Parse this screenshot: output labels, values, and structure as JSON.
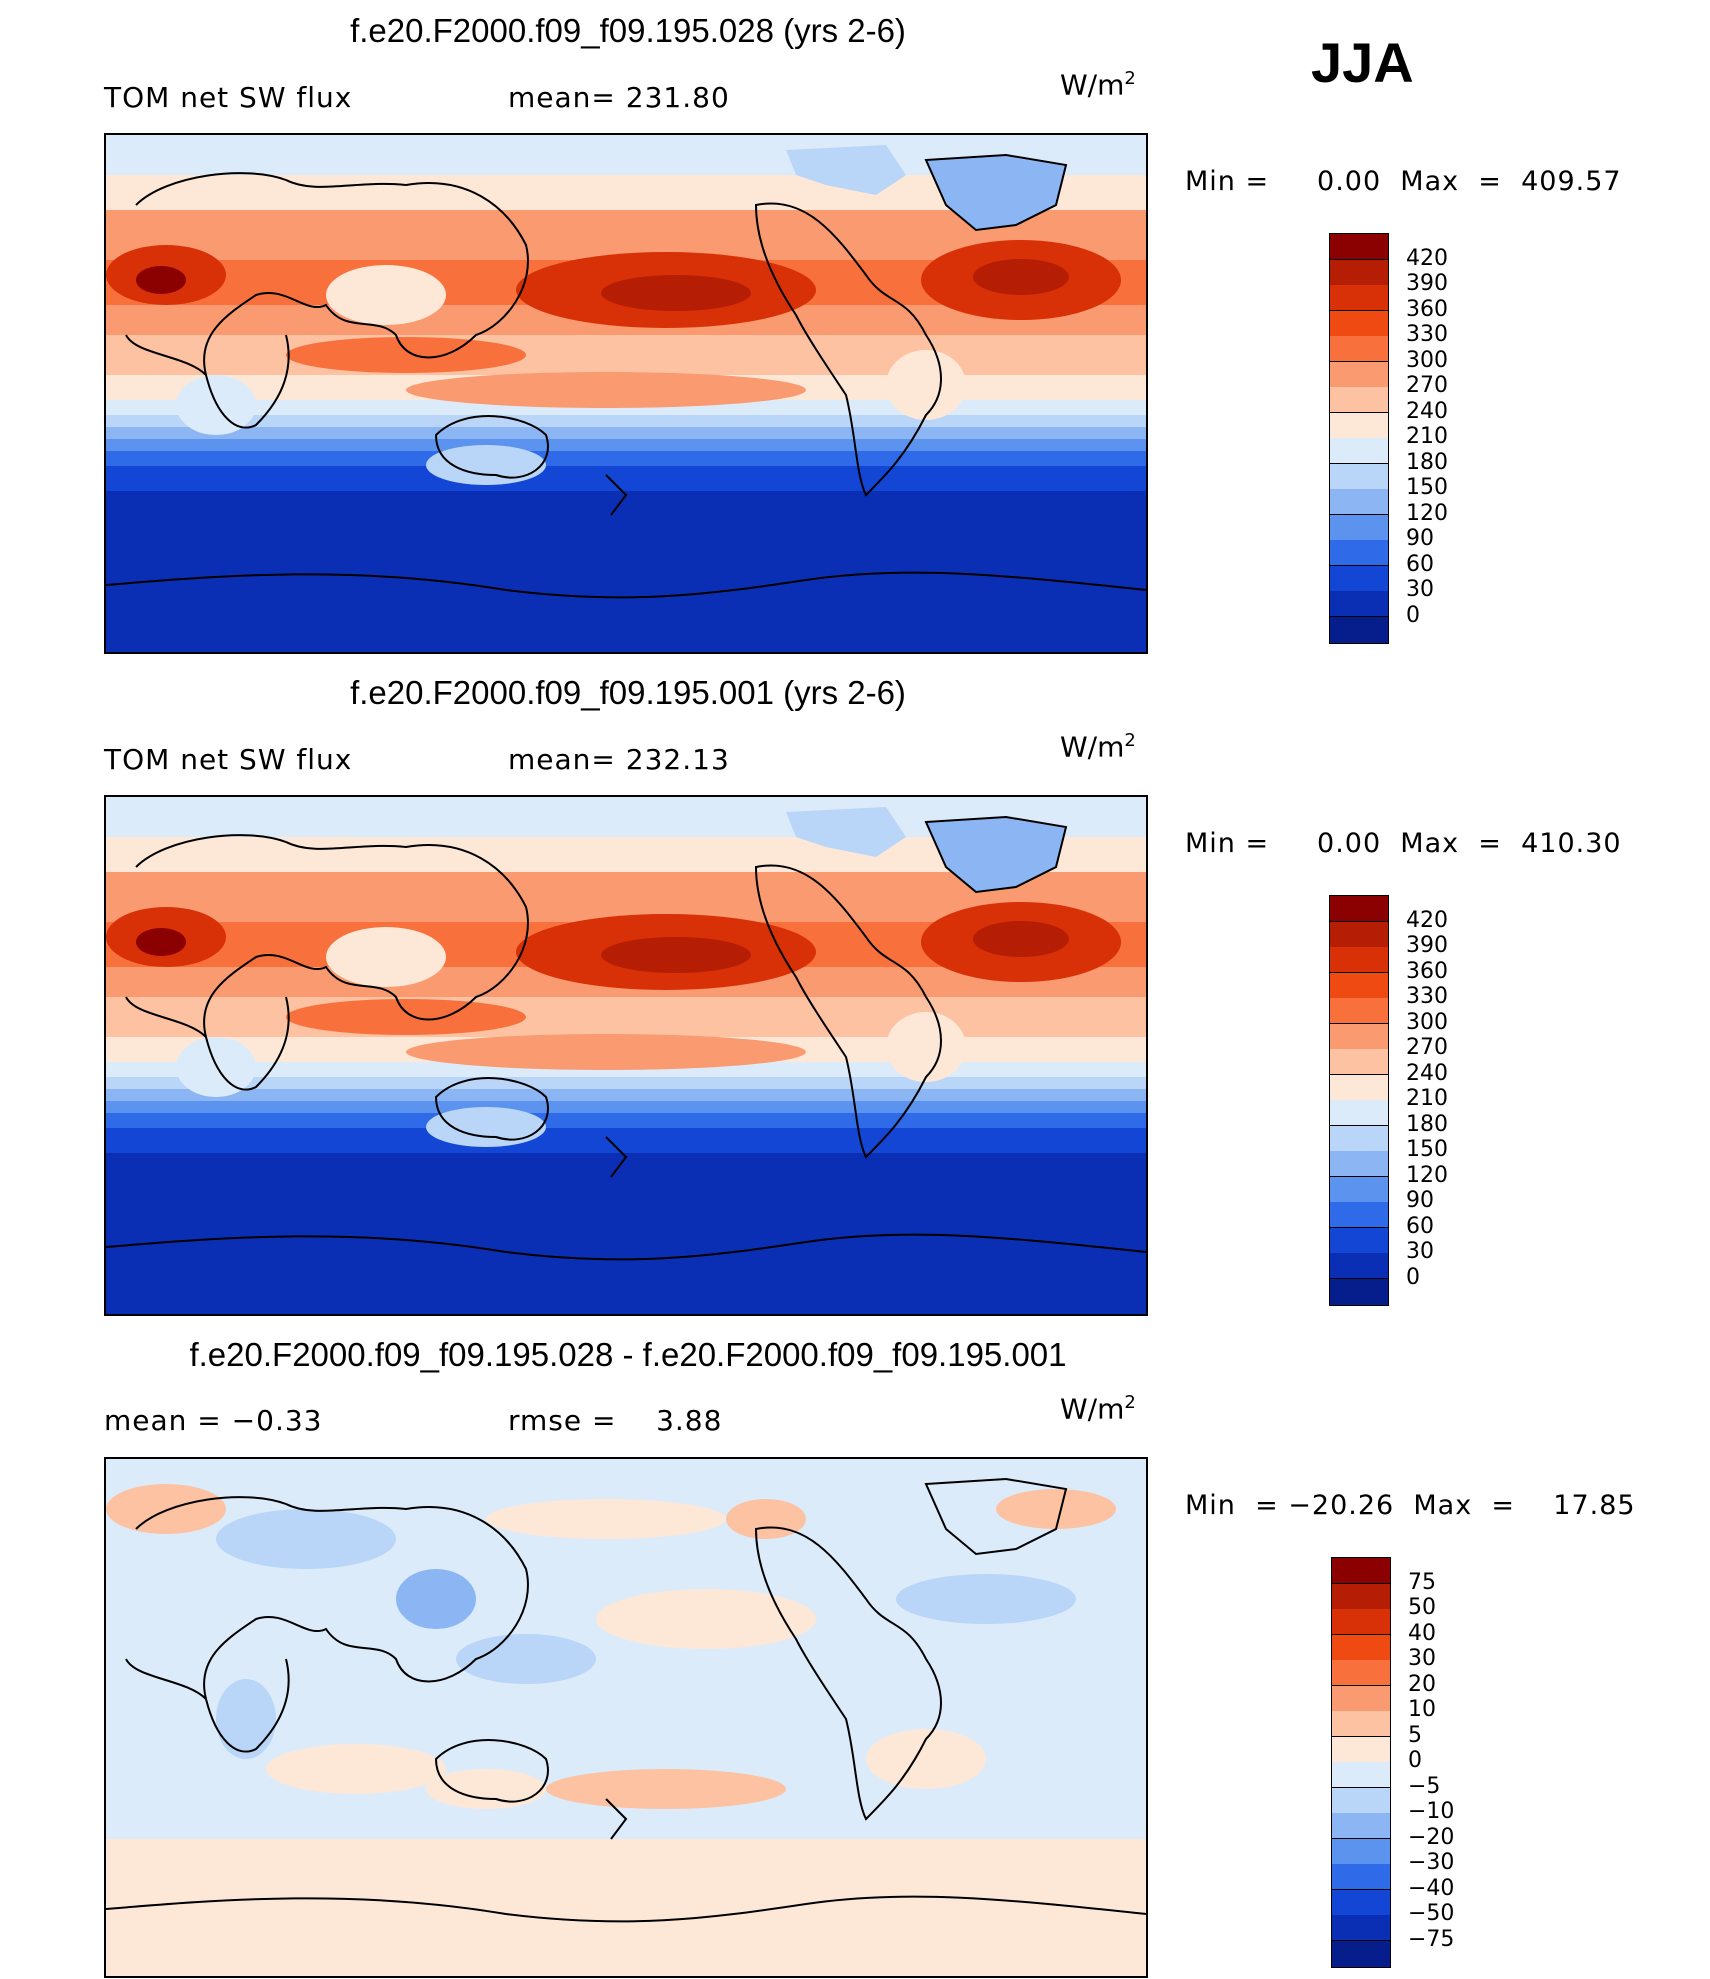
{
  "season": "JJA",
  "panels": [
    {
      "title": "f.e20.F2000.f09_f09.195.028 (yrs 2-6)",
      "left_label": "TOM net SW flux",
      "mid_label": "mean=",
      "mid_value": "231.80",
      "units": "W/m",
      "units_sup": "2",
      "minmax_text": "Min =     0.00  Max  =  409.57",
      "type": "field"
    },
    {
      "title": "f.e20.F2000.f09_f09.195.001 (yrs 2-6)",
      "left_label": "TOM net SW flux",
      "mid_label": "mean=",
      "mid_value": "232.13",
      "units": "W/m",
      "units_sup": "2",
      "minmax_text": "Min =     0.00  Max  =  410.30",
      "type": "field"
    },
    {
      "title": "f.e20.F2000.f09_f09.195.028 - f.e20.F2000.f09_f09.195.001",
      "left_label": "mean  =    −0.33",
      "mid_label": "rmse  =",
      "mid_value": "3.88",
      "units": "W/m",
      "units_sup": "2",
      "minmax_text": "Min  = −20.26  Max  =    17.85",
      "type": "diff"
    }
  ],
  "colorbar_field": {
    "labels": [
      "420",
      "390",
      "360",
      "330",
      "300",
      "270",
      "240",
      "210",
      "180",
      "150",
      "120",
      "90",
      "60",
      "30",
      "0"
    ],
    "colors": [
      "#8b0000",
      "#b51d04",
      "#d83007",
      "#ee4a12",
      "#f8713c",
      "#fa9a70",
      "#fcc2a2",
      "#fde8d8",
      "#dcebfa",
      "#b9d5f7",
      "#8cb6f3",
      "#5c93ee",
      "#2f6ae8",
      "#1446d6",
      "#0a2fb5",
      "#061e8c"
    ]
  },
  "colorbar_diff": {
    "labels": [
      "75",
      "50",
      "40",
      "30",
      "20",
      "10",
      "5",
      "0",
      "−5",
      "−10",
      "−20",
      "−30",
      "−40",
      "−50",
      "−75"
    ],
    "colors": [
      "#8b0000",
      "#b51d04",
      "#d83007",
      "#ee4a12",
      "#f8713c",
      "#fa9a70",
      "#fcc2a2",
      "#fde8d8",
      "#dcebfa",
      "#b9d5f7",
      "#8cb6f3",
      "#5c93ee",
      "#2f6ae8",
      "#1446d6",
      "#0a2fb5",
      "#061e8c"
    ]
  }
}
